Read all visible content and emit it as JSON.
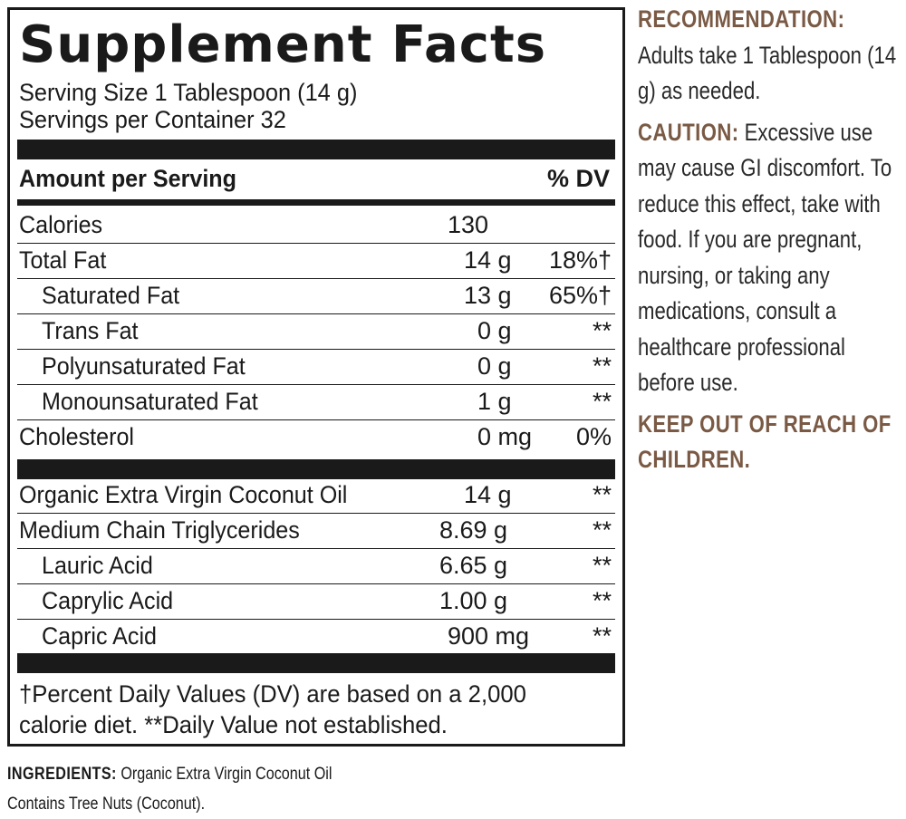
{
  "facts": {
    "title": "Supplement Facts",
    "serving_size": "Serving Size 1 Tablespoon (14 g)",
    "servings_per_container": "Servings per Container 32",
    "header_amount": "Amount per Serving",
    "header_dv": "% DV",
    "rows": [
      {
        "name": "Calories",
        "amount": "130",
        "dv": ""
      },
      {
        "name": "Total Fat",
        "amount": "14 g",
        "dv": "18%†"
      },
      {
        "name": "Saturated Fat",
        "amount": "13 g",
        "dv": "65%†"
      },
      {
        "name": "Trans Fat",
        "amount": "0 g",
        "dv": "**"
      },
      {
        "name": "Polyunsaturated Fat",
        "amount": "0 g",
        "dv": "**"
      },
      {
        "name": "Monounsaturated Fat",
        "amount": "1 g",
        "dv": "**"
      },
      {
        "name": "Cholesterol",
        "amount": "0 mg",
        "dv": "0%"
      }
    ],
    "ingredient_rows": [
      {
        "name": "Organic Extra Virgin Coconut Oil",
        "amount": "14 g",
        "dv": "**"
      },
      {
        "name": "Medium Chain Triglycerides",
        "amount": "8.69 g",
        "dv": "**"
      },
      {
        "name": "Lauric Acid",
        "amount": "6.65 g",
        "dv": "**"
      },
      {
        "name": "Caprylic Acid",
        "amount": "1.00 g",
        "dv": "**"
      },
      {
        "name": "Capric Acid",
        "amount": "900 mg",
        "dv": "**"
      }
    ],
    "footnote": "†Percent Daily Values (DV) are based on a 2,000 calorie diet. **Daily Value not established."
  },
  "sidebar": {
    "recommendation_label": "RECOMMENDATION:",
    "recommendation_text": "Adults take 1 Tablespoon (14 g) as needed.",
    "caution_label": "CAUTION:",
    "caution_text": "Excessive use may cause GI discomfort. To reduce this effect, take with food. If you are pregnant, nursing, or taking any medications, consult a healthcare professional before use.",
    "warning": "KEEP OUT OF REACH OF CHILDREN."
  },
  "ingredients": {
    "label": "INGREDIENTS:",
    "text": "Organic Extra Virgin Coconut Oil",
    "allergen": "Contains Tree Nuts (Coconut)."
  },
  "colors": {
    "ink": "#1a1a1a",
    "accent_brown": "#7a5a45"
  }
}
